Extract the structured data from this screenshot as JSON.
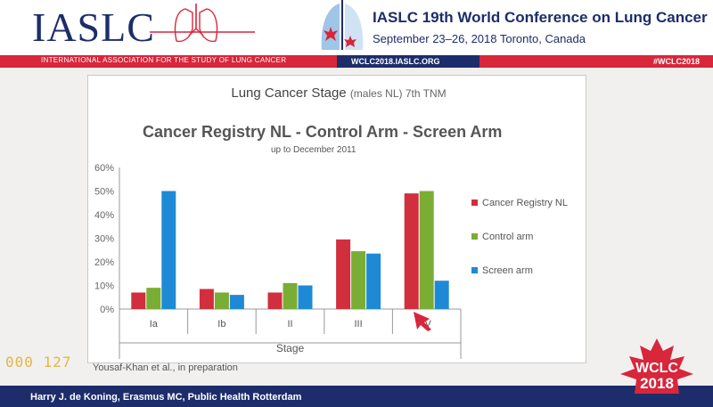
{
  "header": {
    "logo": "IASLC",
    "conference_title": "IASLC 19th World Conference on Lung Cancer",
    "conference_dates": "September 23–26, 2018  Toronto, Canada",
    "org_name": "INTERNATIONAL ASSOCIATION FOR THE STUDY OF LUNG CANCER",
    "url": "WCLC2018.IASLC.ORG",
    "hashtag": "#WCLC2018"
  },
  "slide": {
    "title": "Lung Cancer Stage",
    "title_sub": "(males NL) 7th TNM",
    "citation": "Yousaf-Khan et al., in preparation"
  },
  "footer": {
    "presenter": "Harry J. de Koning, Erasmus MC, Public Health Rotterdam",
    "badge_line1": "WCLC",
    "badge_line2": "2018",
    "timecode": "000 127"
  },
  "colors": {
    "navy": "#1d2d6b",
    "red": "#d8263b",
    "cancer_registry": "#d12f3d",
    "control_arm": "#7aad34",
    "screen_arm": "#1e8ad6"
  },
  "chart_data": {
    "type": "bar",
    "title": "Cancer Registry NL - Control Arm - Screen Arm",
    "subtitle": "up to December 2011",
    "xlabel": "Stage",
    "ylabel": "",
    "categories": [
      "Ia",
      "Ib",
      "II",
      "III",
      "IV"
    ],
    "ylim": [
      0,
      60
    ],
    "yticks": [
      "0%",
      "10%",
      "20%",
      "30%",
      "40%",
      "50%",
      "60%"
    ],
    "legend_position": "right",
    "series": [
      {
        "name": "Cancer Registry NL",
        "color": "#d12f3d",
        "values": [
          7,
          8.5,
          7,
          29.5,
          49
        ]
      },
      {
        "name": "Control arm",
        "color": "#7aad34",
        "values": [
          9,
          7,
          11,
          24.5,
          50
        ]
      },
      {
        "name": "Screen arm",
        "color": "#1e8ad6",
        "values": [
          50,
          6,
          10,
          23.5,
          12
        ]
      }
    ]
  }
}
